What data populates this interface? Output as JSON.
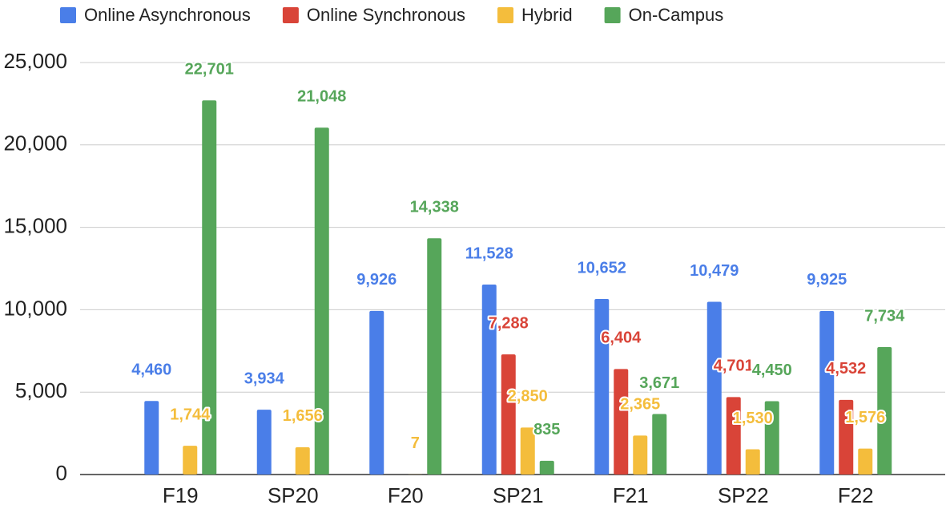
{
  "chart_data": {
    "type": "bar",
    "categories": [
      "F19",
      "SP20",
      "F20",
      "SP21",
      "F21",
      "SP22",
      "F22"
    ],
    "series": [
      {
        "name": "Online Asynchronous",
        "color": "#4a7ee8",
        "values": [
          4460,
          3934,
          9926,
          11528,
          10652,
          10479,
          9925
        ],
        "value_labels": [
          "4,460",
          "3,934",
          "9,926",
          "11,528",
          "10,652",
          "10,479",
          "9,925"
        ]
      },
      {
        "name": "Online Synchronous",
        "color": "#d94438",
        "values": [
          null,
          null,
          null,
          7288,
          6404,
          4701,
          4532
        ],
        "value_labels": [
          null,
          null,
          null,
          "7,288",
          "6,404",
          "4,701",
          "4,532"
        ]
      },
      {
        "name": "Hybrid",
        "color": "#f4bd3c",
        "values": [
          1744,
          1656,
          7,
          2850,
          2365,
          1530,
          1576
        ],
        "value_labels": [
          "1,744",
          "1,656",
          "7",
          "2,850",
          "2,365",
          "1,530",
          "1,576"
        ]
      },
      {
        "name": "On-Campus",
        "color": "#56a65a",
        "values": [
          22701,
          21048,
          14338,
          835,
          3671,
          4450,
          7734
        ],
        "value_labels": [
          "22,701",
          "21,048",
          "14,338",
          "835",
          "3,671",
          "4,450",
          "7,734"
        ]
      }
    ],
    "ylim": [
      0,
      25000
    ],
    "yticks": [
      0,
      {
        "value": 5000,
        "label": "5,000"
      },
      {
        "value": 10000,
        "label": "10,000"
      },
      {
        "value": 15000,
        "label": "15,000"
      },
      {
        "value": 20000,
        "label": "20,000"
      },
      {
        "value": 25000,
        "label": "25,000"
      }
    ],
    "grid": true,
    "legend": "top"
  }
}
